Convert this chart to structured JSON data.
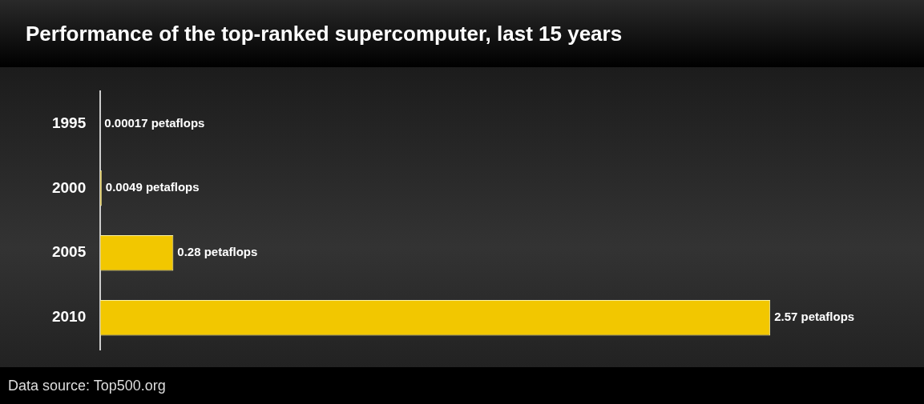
{
  "chart_data": {
    "type": "bar",
    "orientation": "horizontal",
    "title": "Performance of the top-ranked supercomputer, last 15 years",
    "categories": [
      "1995",
      "2000",
      "2005",
      "2010"
    ],
    "values": [
      0.00017,
      0.0049,
      0.28,
      2.57
    ],
    "value_labels": [
      "0.00017 petaflops",
      "0.0049 petaflops",
      "0.28 petaflops",
      "2.57 petaflops"
    ],
    "color": "#f2c700",
    "tick_labels": "y",
    "annotations": [
      "Data source: Top500.org"
    ]
  }
}
